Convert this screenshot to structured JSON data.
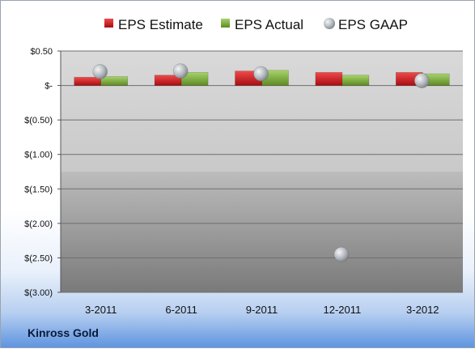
{
  "company": "Kinross Gold",
  "colors": {
    "estimate": "#c8151b",
    "actual": "#7fa93a",
    "gaap": "#b9bec4"
  },
  "chart_data": {
    "type": "bar",
    "categories": [
      "3-2011",
      "6-2011",
      "9-2011",
      "12-2011",
      "3-2012"
    ],
    "series": [
      {
        "name": "EPS Estimate",
        "kind": "bar",
        "values": [
          0.12,
          0.15,
          0.21,
          0.19,
          0.19
        ]
      },
      {
        "name": "EPS Actual",
        "kind": "bar",
        "values": [
          0.13,
          0.19,
          0.22,
          0.15,
          0.17
        ]
      },
      {
        "name": "EPS GAAP",
        "kind": "scatter",
        "values": [
          0.2,
          0.21,
          0.17,
          -2.45,
          0.07
        ]
      }
    ],
    "yticks": [
      "$0.50",
      "$-",
      "$(0.50)",
      "$(1.00)",
      "$(1.50)",
      "$(2.00)",
      "$(2.50)",
      "$(3.00)"
    ],
    "ytick_values": [
      0.5,
      0,
      -0.5,
      -1.0,
      -1.5,
      -2.0,
      -2.5,
      -3.0
    ],
    "ylim": [
      -3.0,
      0.5
    ],
    "legend_position": "top",
    "grid": true
  }
}
